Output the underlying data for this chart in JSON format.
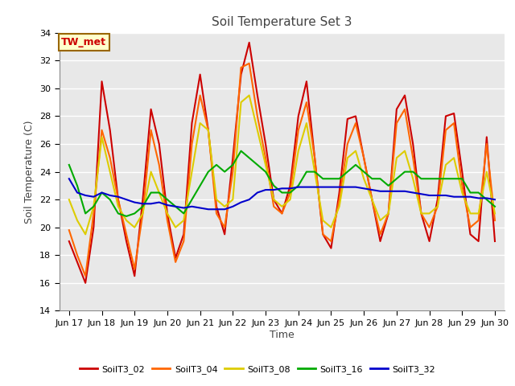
{
  "title": "Soil Temperature Set 3",
  "xlabel": "Time",
  "ylabel": "Soil Temperature (C)",
  "ylim": [
    14,
    34
  ],
  "yticks": [
    14,
    16,
    18,
    20,
    22,
    24,
    26,
    28,
    30,
    32,
    34
  ],
  "bg_color": "#e8e8e8",
  "annotation_text": "TW_met",
  "annotation_bg": "#ffffcc",
  "annotation_border": "#996600",
  "annotation_text_color": "#cc0000",
  "series": {
    "SoilT3_02": {
      "color": "#cc0000",
      "zorder": 3,
      "x": [
        0,
        0.25,
        0.5,
        0.75,
        1.0,
        1.25,
        1.5,
        1.75,
        2.0,
        2.25,
        2.5,
        2.75,
        3.0,
        3.25,
        3.5,
        3.75,
        4.0,
        4.25,
        4.5,
        4.75,
        5.0,
        5.25,
        5.5,
        5.75,
        6.0,
        6.25,
        6.5,
        6.75,
        7.0,
        7.25,
        7.5,
        7.75,
        8.0,
        8.25,
        8.5,
        8.75,
        9.0,
        9.25,
        9.5,
        9.75,
        10.0,
        10.25,
        10.5,
        10.75,
        11.0,
        11.25,
        11.5,
        11.75,
        12.0,
        12.25,
        12.5,
        12.75,
        13.0
      ],
      "y": [
        19,
        17.5,
        16.0,
        20,
        30.5,
        27,
        22,
        19,
        16.5,
        22,
        28.5,
        26,
        21,
        17.8,
        19.5,
        27.5,
        31.0,
        27,
        21.5,
        19.5,
        25,
        31.0,
        33.3,
        29.5,
        26,
        22,
        21,
        23,
        28,
        30.5,
        25,
        19.5,
        18.5,
        22.5,
        27.8,
        28.0,
        25,
        22,
        19,
        21,
        28.5,
        29.5,
        26,
        21,
        19,
        22,
        28.0,
        28.2,
        24,
        19.5,
        19.0,
        26.5,
        19
      ]
    },
    "SoilT3_04": {
      "color": "#ff6600",
      "zorder": 3,
      "x": [
        0,
        0.25,
        0.5,
        0.75,
        1.0,
        1.25,
        1.5,
        1.75,
        2.0,
        2.25,
        2.5,
        2.75,
        3.0,
        3.25,
        3.5,
        3.75,
        4.0,
        4.25,
        4.5,
        4.75,
        5.0,
        5.25,
        5.5,
        5.75,
        6.0,
        6.25,
        6.5,
        6.75,
        7.0,
        7.25,
        7.5,
        7.75,
        8.0,
        8.25,
        8.5,
        8.75,
        9.0,
        9.25,
        9.5,
        9.75,
        10.0,
        10.25,
        10.5,
        10.75,
        11.0,
        11.25,
        11.5,
        11.75,
        12.0,
        12.25,
        12.5,
        12.75,
        13.0
      ],
      "y": [
        19.8,
        18,
        16.5,
        21,
        27,
        25,
        22,
        19.5,
        17,
        21,
        27,
        24.5,
        20.5,
        17.5,
        19,
        26,
        29.5,
        27,
        21,
        20,
        24,
        31.5,
        31.8,
        28,
        25,
        21.5,
        21,
        22.5,
        27,
        29,
        25,
        19.5,
        19,
        22,
        26,
        27.5,
        25,
        22,
        19.5,
        21,
        27.5,
        28.5,
        25,
        21,
        20,
        21.5,
        27,
        27.5,
        23,
        20,
        20.5,
        26,
        20.5
      ]
    },
    "SoilT3_08": {
      "color": "#ddcc00",
      "zorder": 3,
      "x": [
        0,
        0.25,
        0.5,
        0.75,
        1.0,
        1.25,
        1.5,
        1.75,
        2.0,
        2.25,
        2.5,
        2.75,
        3.0,
        3.25,
        3.5,
        3.75,
        4.0,
        4.25,
        4.5,
        4.75,
        5.0,
        5.25,
        5.5,
        5.75,
        6.0,
        6.25,
        6.5,
        6.75,
        7.0,
        7.25,
        7.5,
        7.75,
        8.0,
        8.25,
        8.5,
        8.75,
        9.0,
        9.25,
        9.5,
        9.75,
        10.0,
        10.25,
        10.5,
        10.75,
        11.0,
        11.25,
        11.5,
        11.75,
        12.0,
        12.25,
        12.5,
        12.75,
        13.0
      ],
      "y": [
        22,
        20.5,
        19.5,
        21.5,
        26.5,
        24,
        21.5,
        20.5,
        20,
        21,
        24,
        22.5,
        21,
        20,
        20.5,
        24,
        27.5,
        27.0,
        22,
        21.5,
        22,
        29.0,
        29.5,
        27,
        24.5,
        22,
        21.5,
        22,
        25.5,
        27.5,
        24,
        20.5,
        20,
        21.5,
        25,
        25.5,
        23.5,
        22,
        20.5,
        21,
        25,
        25.5,
        23.5,
        21,
        21,
        21.5,
        24.5,
        25,
        22.5,
        21,
        21,
        24,
        21
      ]
    },
    "SoilT3_16": {
      "color": "#00aa00",
      "zorder": 3,
      "x": [
        0,
        0.25,
        0.5,
        0.75,
        1.0,
        1.25,
        1.5,
        1.75,
        2.0,
        2.25,
        2.5,
        2.75,
        3.0,
        3.25,
        3.5,
        3.75,
        4.0,
        4.25,
        4.5,
        4.75,
        5.0,
        5.25,
        5.5,
        5.75,
        6.0,
        6.25,
        6.5,
        6.75,
        7.0,
        7.25,
        7.5,
        7.75,
        8.0,
        8.25,
        8.5,
        8.75,
        9.0,
        9.25,
        9.5,
        9.75,
        10.0,
        10.25,
        10.5,
        10.75,
        11.0,
        11.25,
        11.5,
        11.75,
        12.0,
        12.25,
        12.5,
        12.75,
        13.0
      ],
      "y": [
        24.5,
        23,
        21,
        21.5,
        22.5,
        22,
        21,
        20.8,
        21,
        21.5,
        22.5,
        22.5,
        22,
        21.5,
        21,
        22,
        23,
        24,
        24.5,
        24,
        24.5,
        25.5,
        25,
        24.5,
        24,
        23,
        22.5,
        22.5,
        23,
        24,
        24,
        23.5,
        23.5,
        23.5,
        24,
        24.5,
        24,
        23.5,
        23.5,
        23,
        23.5,
        24,
        24,
        23.5,
        23.5,
        23.5,
        23.5,
        23.5,
        23.5,
        22.5,
        22.5,
        22,
        21.5
      ]
    },
    "SoilT3_32": {
      "color": "#0000cc",
      "zorder": 4,
      "x": [
        0,
        0.25,
        0.5,
        0.75,
        1.0,
        1.25,
        1.5,
        1.75,
        2.0,
        2.25,
        2.5,
        2.75,
        3.0,
        3.25,
        3.5,
        3.75,
        4.0,
        4.25,
        4.5,
        4.75,
        5.0,
        5.25,
        5.5,
        5.75,
        6.0,
        6.25,
        6.5,
        6.75,
        7.0,
        7.25,
        7.5,
        7.75,
        8.0,
        8.25,
        8.5,
        8.75,
        9.0,
        9.25,
        9.5,
        9.75,
        10.0,
        10.25,
        10.5,
        10.75,
        11.0,
        11.25,
        11.5,
        11.75,
        12.0,
        12.25,
        12.5,
        12.75,
        13.0
      ],
      "y": [
        23.5,
        22.5,
        22.3,
        22.2,
        22.5,
        22.3,
        22.2,
        22.0,
        21.8,
        21.7,
        21.7,
        21.8,
        21.6,
        21.5,
        21.4,
        21.5,
        21.4,
        21.3,
        21.3,
        21.3,
        21.5,
        21.8,
        22.0,
        22.5,
        22.7,
        22.7,
        22.8,
        22.8,
        22.9,
        22.9,
        22.9,
        22.9,
        22.9,
        22.9,
        22.9,
        22.9,
        22.8,
        22.7,
        22.6,
        22.6,
        22.6,
        22.6,
        22.5,
        22.4,
        22.3,
        22.3,
        22.3,
        22.2,
        22.2,
        22.2,
        22.1,
        22.1,
        22.0
      ]
    }
  },
  "xtick_positions": [
    0,
    1,
    2,
    3,
    4,
    5,
    6,
    7,
    8,
    9,
    10,
    11,
    12,
    13
  ],
  "xtick_labels": [
    "Jun 17",
    "Jun 18",
    "Jun 19",
    "Jun 20",
    "Jun 21",
    "Jun 22",
    "Jun 23",
    "Jun 24",
    "Jun 25",
    "Jun 26",
    "Jun 27",
    "Jun 28",
    "Jun 29",
    "Jun 30"
  ],
  "legend_order": [
    "SoilT3_02",
    "SoilT3_04",
    "SoilT3_08",
    "SoilT3_16",
    "SoilT3_32"
  ]
}
